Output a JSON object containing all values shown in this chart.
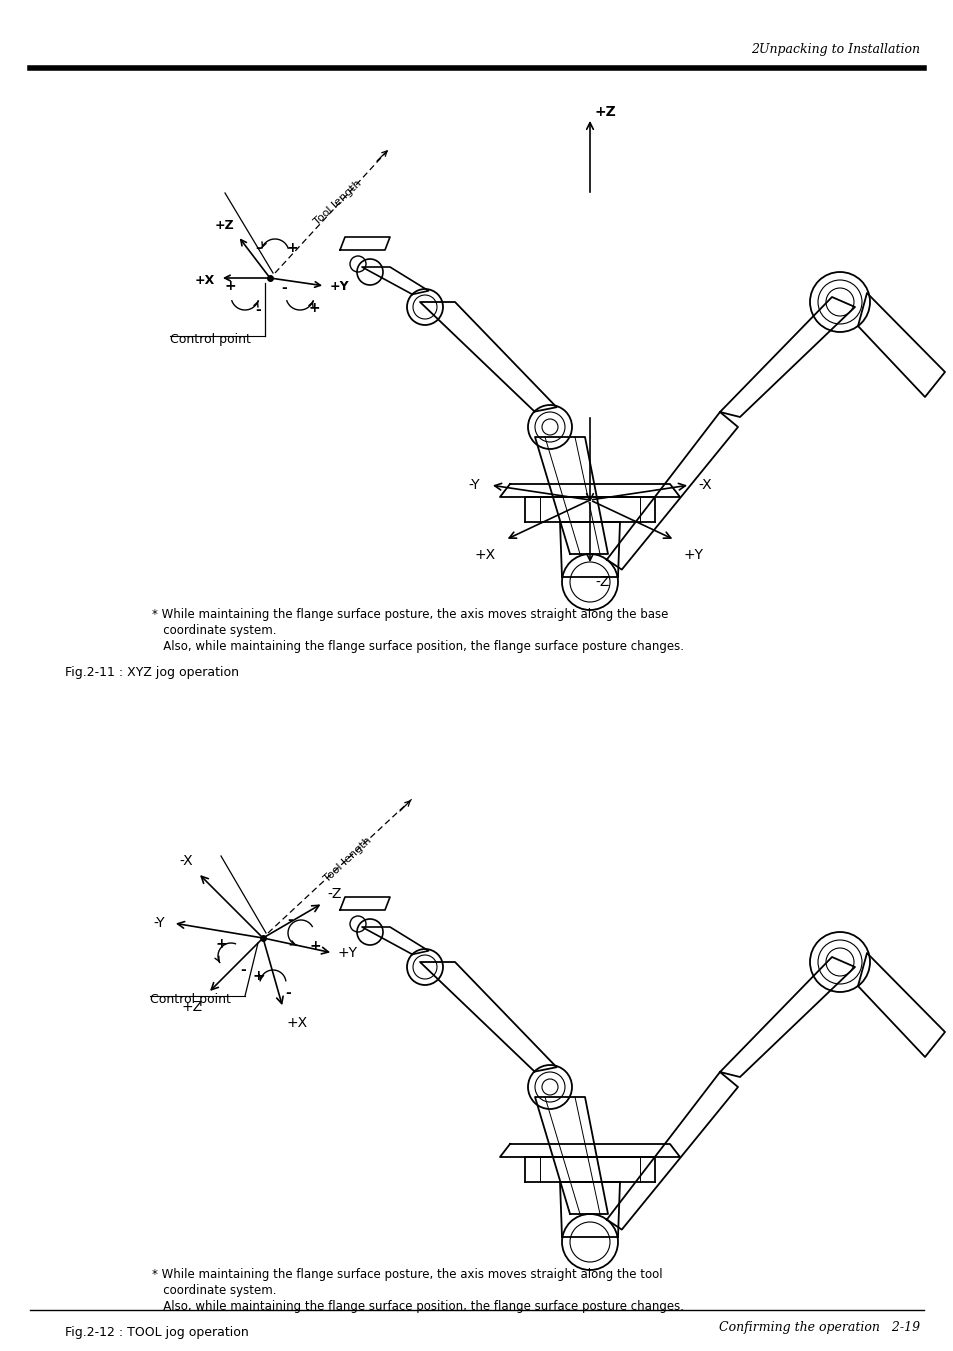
{
  "page_header_right": "2Unpacking to Installation",
  "page_footer_right": "Confirming the operation   2-19",
  "fig1_caption": "Fig.2-11 : XYZ jog operation",
  "fig2_caption": "Fig.2-12 : TOOL jog operation",
  "fig1_note_line1": "* While maintaining the flange surface posture, the axis moves straight along the base",
  "fig1_note_line2": "   coordinate system.",
  "fig1_note_line3": "   Also, while maintaining the flange surface position, the flange surface posture changes.",
  "fig2_note_line1": "* While maintaining the flange surface posture, the axis moves straight along the tool",
  "fig2_note_line2": "   coordinate system.",
  "fig2_note_line3": "   Also, while maintaining the flange surface position, the flange surface posture changes.",
  "background_color": "#ffffff",
  "text_color": "#000000"
}
